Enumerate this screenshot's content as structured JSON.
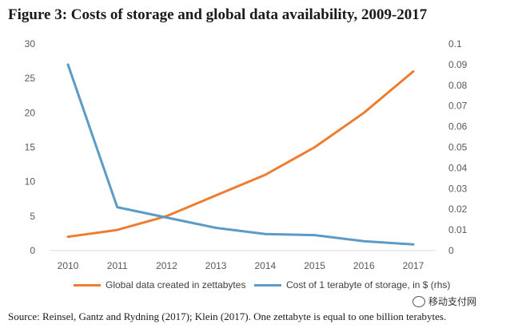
{
  "title": "Figure 3: Costs of storage and global data availability, 2009-2017",
  "source": "Source: Reinsel, Gantz and Rydning (2017); Klein (2017). One zettabyte is equal to one billion terabytes.",
  "watermark": "移动支付网",
  "chart_data": {
    "type": "line",
    "x": [
      "2010",
      "2011",
      "2012",
      "2013",
      "2014",
      "2015",
      "2016",
      "2017"
    ],
    "y_left_ticks": [
      "0",
      "5",
      "10",
      "15",
      "20",
      "25",
      "30"
    ],
    "y_right_ticks": [
      "0",
      "0.01",
      "0.02",
      "0.03",
      "0.04",
      "0.05",
      "0.06",
      "0.07",
      "0.08",
      "0.09",
      "0.1"
    ],
    "ylim_left": [
      0,
      30
    ],
    "ylim_right": [
      0,
      0.1
    ],
    "grid": false,
    "legend_position": "bottom",
    "series": [
      {
        "name": "Global data created in zettabytes",
        "axis": "left",
        "color": "#ED7D31",
        "values": [
          2,
          3,
          5,
          8,
          11,
          15,
          20,
          26
        ]
      },
      {
        "name": "Cost of 1 terabyte of storage, in $ (rhs)",
        "axis": "right",
        "color": "#5B9BC4",
        "values": [
          0.09,
          0.021,
          0.016,
          0.011,
          0.008,
          0.0075,
          0.0045,
          0.003
        ]
      }
    ]
  }
}
